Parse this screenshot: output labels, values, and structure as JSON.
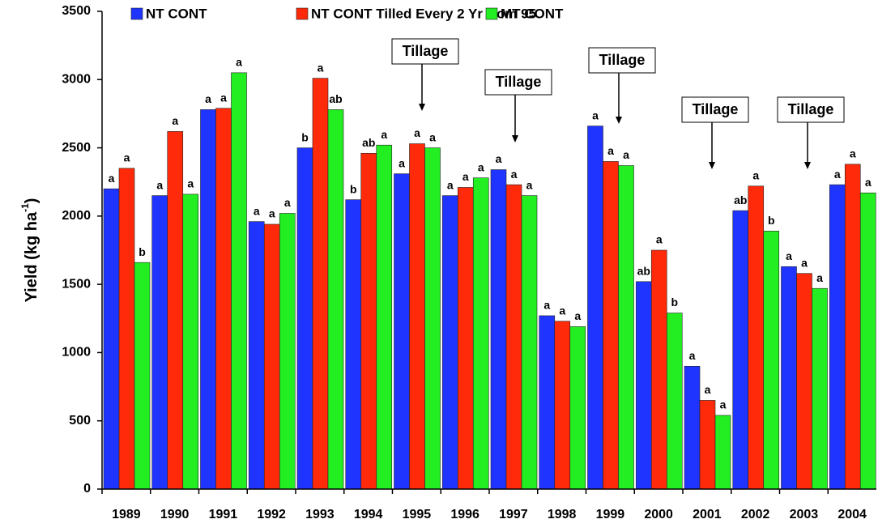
{
  "chart_data": {
    "type": "bar",
    "categories": [
      "1989",
      "1990",
      "1991",
      "1992",
      "1993",
      "1994",
      "1995",
      "1996",
      "1997",
      "1998",
      "1999",
      "2000",
      "2001",
      "2002",
      "2003",
      "2004"
    ],
    "series": [
      {
        "name": "NT CONT",
        "color": "#1f35ff",
        "values": [
          2200,
          2150,
          2780,
          1960,
          2500,
          2120,
          2310,
          2150,
          2340,
          1270,
          2660,
          1520,
          900,
          2040,
          1630,
          2230
        ],
        "letters": [
          "a",
          "a",
          "a",
          "a",
          "b",
          "b",
          "a",
          "a",
          "a",
          "a",
          "a",
          "ab",
          "a",
          "ab",
          "a",
          "a"
        ]
      },
      {
        "name": "NT CONT Tilled Every 2 Yr from 95",
        "color": "#ff2a0a",
        "values": [
          2350,
          2620,
          2790,
          1940,
          3010,
          2460,
          2530,
          2210,
          2230,
          1230,
          2400,
          1750,
          650,
          2220,
          1580,
          2380
        ],
        "letters": [
          "a",
          "a",
          "a",
          "a",
          "a",
          "ab",
          "a",
          "a",
          "a",
          "a",
          "a",
          "a",
          "a",
          "a",
          "a",
          "a"
        ]
      },
      {
        "name": "MT CONT",
        "color": "#22ee22",
        "values": [
          1660,
          2160,
          3050,
          2020,
          2780,
          2520,
          2500,
          2280,
          2150,
          1190,
          2370,
          1290,
          540,
          1890,
          1470,
          2170
        ],
        "letters": [
          "b",
          "a",
          "a",
          "a",
          "ab",
          "a",
          "a",
          "a",
          "a",
          "a",
          "a",
          "b",
          "a",
          "b",
          "a",
          "a"
        ]
      }
    ],
    "ylabel": [
      "Yield (kg ha",
      "-1",
      ")"
    ],
    "ylim": [
      0,
      3500
    ],
    "yticks": [
      0,
      500,
      1000,
      1500,
      2000,
      2500,
      3000,
      3500
    ],
    "annotations": [
      "Tillage",
      "Tillage",
      "Tillage",
      "Tillage",
      "Tillage"
    ],
    "legend": "top"
  }
}
